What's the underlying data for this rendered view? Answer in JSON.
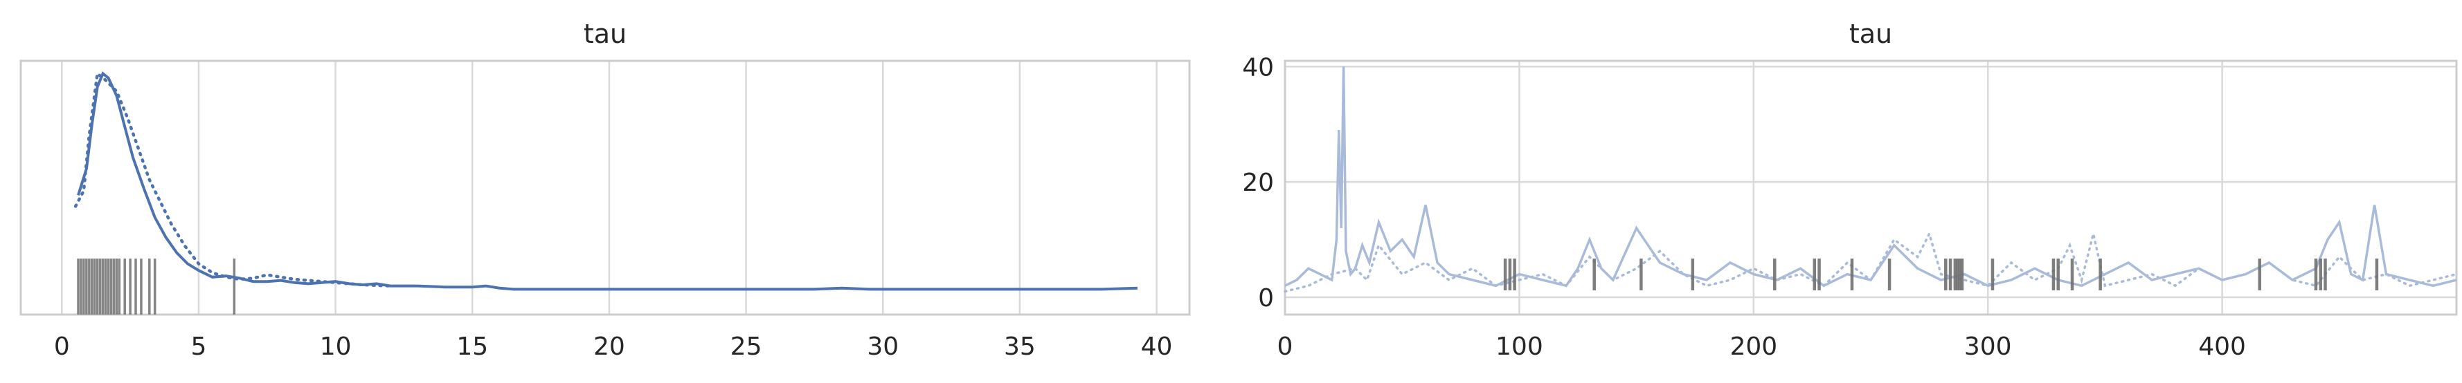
{
  "colors": {
    "line": "#4c72b0",
    "line_faint": "#a9bbd9",
    "divergence": "#707070",
    "frame": "#cccccc",
    "grid": "#d9d9d9"
  },
  "chart_data": [
    {
      "type": "line",
      "title": "tau",
      "xlabel": "",
      "ylabel": "",
      "xlim": [
        -1.5,
        41.2
      ],
      "xticks": [
        0,
        5,
        10,
        15,
        20,
        25,
        30,
        35,
        40
      ],
      "grid": "vertical",
      "series": [
        {
          "style": "solid",
          "x": [
            0.6,
            0.9,
            1.1,
            1.3,
            1.5,
            1.7,
            2.0,
            2.3,
            2.6,
            3.0,
            3.4,
            3.8,
            4.2,
            4.6,
            5.0,
            5.5,
            6.0,
            6.5,
            7.0,
            7.5,
            8.0,
            8.5,
            9.0,
            9.5,
            10.0,
            10.5,
            11.0,
            11.5,
            12.0,
            13.0,
            14.0,
            15.0,
            15.5,
            16.0,
            16.5,
            17.0,
            20,
            25,
            27.5,
            28.5,
            29.5,
            30,
            35,
            38,
            39.3
          ],
          "y": [
            0.43,
            0.55,
            0.75,
            0.92,
            0.98,
            0.96,
            0.88,
            0.74,
            0.6,
            0.46,
            0.33,
            0.24,
            0.17,
            0.12,
            0.09,
            0.06,
            0.065,
            0.055,
            0.04,
            0.04,
            0.045,
            0.035,
            0.03,
            0.035,
            0.04,
            0.03,
            0.025,
            0.03,
            0.02,
            0.02,
            0.015,
            0.015,
            0.02,
            0.01,
            0.005,
            0.005,
            0.005,
            0.005,
            0.005,
            0.01,
            0.005,
            0.005,
            0.005,
            0.005,
            0.01
          ]
        },
        {
          "style": "dotted",
          "x": [
            0.5,
            0.8,
            1.0,
            1.3,
            1.6,
            2.0,
            2.4,
            2.8,
            3.2,
            3.6,
            4.0,
            4.5,
            5.0,
            5.5,
            6.0,
            6.5,
            7.0,
            7.5,
            8.0,
            8.5,
            9.0,
            9.5,
            10.0,
            11.0,
            12.0
          ],
          "y": [
            0.38,
            0.45,
            0.7,
            0.98,
            0.95,
            0.9,
            0.78,
            0.64,
            0.5,
            0.4,
            0.3,
            0.2,
            0.12,
            0.08,
            0.06,
            0.05,
            0.055,
            0.07,
            0.06,
            0.05,
            0.045,
            0.04,
            0.035,
            0.025,
            0.02
          ]
        }
      ],
      "rug": [
        0.6,
        0.7,
        0.8,
        0.9,
        1.0,
        1.1,
        1.2,
        1.3,
        1.4,
        1.5,
        1.6,
        1.7,
        1.8,
        1.9,
        2.0,
        2.1,
        2.3,
        2.5,
        2.7,
        2.9,
        3.2,
        3.4,
        6.3
      ]
    },
    {
      "type": "line",
      "title": "tau",
      "xlabel": "",
      "ylabel": "",
      "xlim": [
        0,
        500
      ],
      "ylim": [
        -3,
        41
      ],
      "xticks": [
        0,
        100,
        200,
        300,
        400
      ],
      "yticks": [
        0,
        20,
        40
      ],
      "grid": "both",
      "series": [
        {
          "style": "solid",
          "x": [
            0,
            5,
            10,
            15,
            20,
            22,
            23,
            24,
            25,
            26,
            28,
            30,
            33,
            36,
            40,
            45,
            50,
            55,
            60,
            65,
            70,
            80,
            90,
            100,
            110,
            120,
            125,
            130,
            135,
            140,
            150,
            160,
            170,
            180,
            190,
            200,
            210,
            220,
            230,
            240,
            250,
            260,
            270,
            280,
            290,
            300,
            310,
            320,
            330,
            340,
            350,
            360,
            370,
            380,
            390,
            400,
            410,
            420,
            430,
            440,
            445,
            450,
            455,
            460,
            465,
            470,
            480,
            490,
            500
          ],
          "y": [
            2,
            3,
            5,
            4,
            3,
            10,
            29,
            12,
            40,
            8,
            4,
            5,
            9,
            6,
            13,
            8,
            10,
            7,
            16,
            6,
            4,
            3,
            2,
            4,
            3,
            2,
            5,
            10,
            5,
            3,
            12,
            6,
            4,
            3,
            6,
            4,
            3,
            5,
            2,
            4,
            3,
            9,
            5,
            3,
            4,
            2,
            3,
            5,
            3,
            2,
            4,
            6,
            3,
            4,
            5,
            3,
            4,
            6,
            3,
            5,
            10,
            13,
            4,
            3,
            16,
            4,
            3,
            2,
            3
          ]
        },
        {
          "style": "dotted",
          "x": [
            0,
            10,
            20,
            30,
            35,
            40,
            50,
            60,
            70,
            80,
            90,
            100,
            110,
            120,
            130,
            140,
            150,
            160,
            170,
            180,
            190,
            200,
            210,
            220,
            230,
            240,
            250,
            260,
            270,
            275,
            280,
            290,
            300,
            310,
            320,
            330,
            335,
            340,
            345,
            350,
            360,
            370,
            380,
            390,
            400,
            410,
            420,
            430,
            440,
            450,
            460,
            470,
            480,
            490,
            500
          ],
          "y": [
            1,
            2,
            4,
            5,
            3,
            9,
            4,
            6,
            3,
            5,
            2,
            3,
            4,
            2,
            7,
            3,
            5,
            8,
            4,
            2,
            3,
            5,
            3,
            4,
            2,
            6,
            3,
            10,
            7,
            11,
            4,
            3,
            2,
            6,
            3,
            5,
            9,
            3,
            11,
            2,
            3,
            4,
            2,
            5,
            3,
            4,
            6,
            3,
            2,
            7,
            3,
            4,
            2,
            3,
            4
          ]
        }
      ],
      "divergences": [
        94,
        96,
        98,
        132,
        152,
        174,
        209,
        226,
        228,
        242,
        258,
        282,
        284,
        286,
        287,
        288,
        289,
        302,
        328,
        330,
        336,
        348,
        416,
        440,
        442,
        444,
        466
      ]
    }
  ],
  "titles": {
    "left": "tau",
    "right": "tau"
  }
}
